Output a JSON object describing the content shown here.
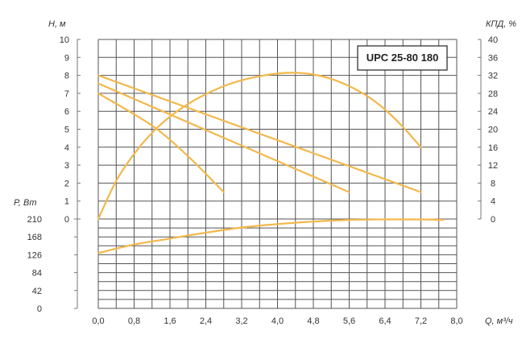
{
  "chart_data": {
    "type": "line",
    "title": "UPC 25-80 180",
    "colors": {
      "curve": "#F2B84B",
      "grid": "#555555",
      "text": "#333333"
    },
    "x": {
      "label": "Q, м³/ч",
      "range": [
        0,
        8
      ],
      "ticks": [
        "0,0",
        "0,8",
        "1,6",
        "2,4",
        "3,2",
        "4,0",
        "4,8",
        "5,6",
        "6,4",
        "7,2",
        "8,0"
      ],
      "tick_values": [
        0,
        0.8,
        1.6,
        2.4,
        3.2,
        4.0,
        4.8,
        5.6,
        6.4,
        7.2,
        8.0
      ]
    },
    "head_axis": {
      "label": "H, м",
      "range": [
        0,
        10
      ],
      "ticks": [
        "0",
        "1",
        "2",
        "3",
        "4",
        "5",
        "6",
        "7",
        "8",
        "9",
        "10"
      ]
    },
    "efficiency_axis": {
      "label": "КПД, %",
      "range": [
        0,
        40
      ],
      "ticks": [
        "0",
        "4",
        "8",
        "12",
        "16",
        "20",
        "24",
        "28",
        "32",
        "36",
        "40"
      ]
    },
    "power_axis": {
      "label": "P, Вт",
      "range": [
        0,
        210
      ],
      "ticks": [
        "0",
        "42",
        "84",
        "126",
        "168",
        "210"
      ]
    },
    "series": [
      {
        "axis": "head",
        "points": [
          [
            0,
            8.0
          ],
          [
            7.2,
            1.5
          ]
        ]
      },
      {
        "axis": "head",
        "points": [
          [
            0,
            7.55
          ],
          [
            5.6,
            1.5
          ]
        ]
      },
      {
        "axis": "head",
        "points": [
          [
            0,
            7.0
          ],
          [
            1.2,
            5.2
          ],
          [
            2.0,
            3.5
          ],
          [
            2.8,
            1.5
          ]
        ]
      },
      {
        "axis": "efficiency",
        "points": [
          [
            0,
            0
          ],
          [
            0.4,
            8.5
          ],
          [
            0.8,
            14.5
          ],
          [
            1.2,
            19.2
          ],
          [
            1.6,
            22.8
          ],
          [
            2.0,
            25.6
          ],
          [
            2.4,
            27.8
          ],
          [
            2.8,
            29.6
          ],
          [
            3.2,
            30.9
          ],
          [
            3.6,
            31.8
          ],
          [
            4.0,
            32.4
          ],
          [
            4.4,
            32.6
          ],
          [
            4.8,
            32.2
          ],
          [
            5.2,
            31.2
          ],
          [
            5.6,
            29.6
          ],
          [
            6.0,
            27.4
          ],
          [
            6.4,
            24.4
          ],
          [
            6.8,
            20.5
          ],
          [
            7.2,
            16.0
          ]
        ]
      },
      {
        "axis": "power",
        "points": [
          [
            0,
            130
          ],
          [
            0.8,
            150
          ],
          [
            1.6,
            164
          ],
          [
            2.4,
            178
          ],
          [
            3.2,
            190
          ],
          [
            4.0,
            198
          ],
          [
            4.8,
            204
          ],
          [
            5.6,
            208
          ],
          [
            6.4,
            209
          ],
          [
            7.2,
            209
          ],
          [
            7.7,
            208
          ]
        ]
      }
    ]
  }
}
